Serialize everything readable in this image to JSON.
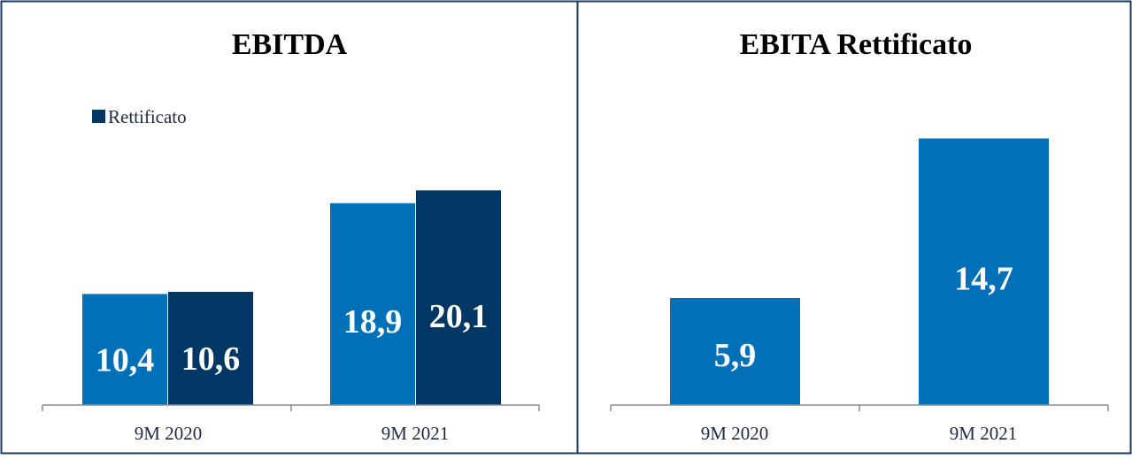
{
  "colors": {
    "border": "#1b3a5c",
    "axis": "#8c8c8c",
    "series_blue": "#0070b8",
    "series_navy": "#003764"
  },
  "chart_data": [
    {
      "type": "bar",
      "title": "EBITDA",
      "categories": [
        "9M 2020",
        "9M 2021"
      ],
      "series": [
        {
          "values": [
            10.4,
            18.9
          ],
          "labels": [
            "10,4",
            "18,9"
          ]
        },
        {
          "name": "Rettificato",
          "values": [
            10.6,
            20.1
          ],
          "labels": [
            "10,6",
            "20,1"
          ]
        }
      ],
      "legend": {
        "position": "top-left",
        "entries": [
          "Rettificato"
        ]
      },
      "ylim": [
        0,
        21.2
      ],
      "grid": false
    },
    {
      "type": "bar",
      "title": "EBITA Rettificato",
      "categories": [
        "9M 2020",
        "9M 2021"
      ],
      "series": [
        {
          "values": [
            5.9,
            14.7
          ],
          "labels": [
            "5,9",
            "14,7"
          ]
        }
      ],
      "ylim": [
        0,
        15.8
      ],
      "grid": false
    }
  ]
}
